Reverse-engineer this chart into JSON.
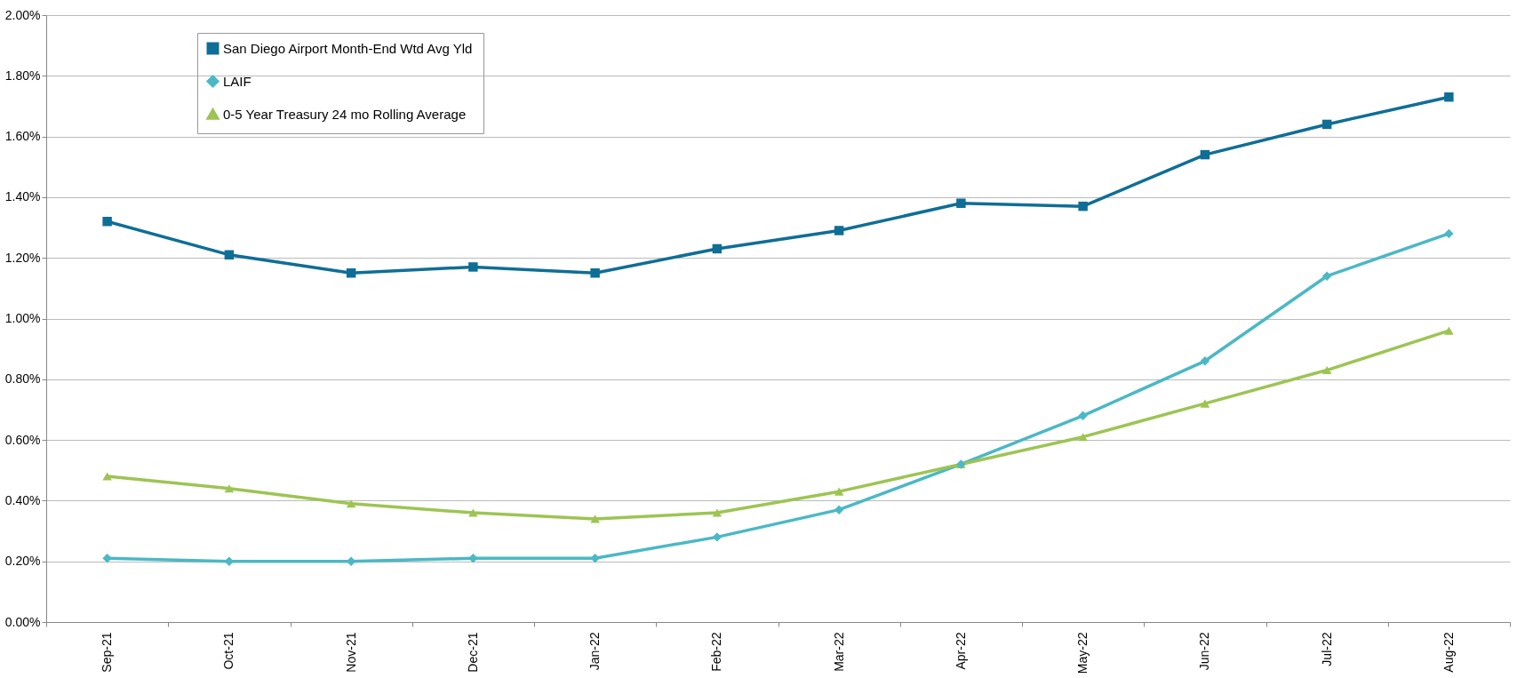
{
  "chart_data": {
    "type": "line",
    "categories": [
      "Sep-21",
      "Oct-21",
      "Nov-21",
      "Dec-21",
      "Jan-22",
      "Feb-22",
      "Mar-22",
      "Apr-22",
      "May-22",
      "Jun-22",
      "Jul-22",
      "Aug-22"
    ],
    "series": [
      {
        "name": "San Diego Airport Month-End Wtd Avg Yld",
        "color": "#0f6e96",
        "marker": "square",
        "values": [
          1.32,
          1.21,
          1.15,
          1.17,
          1.15,
          1.23,
          1.29,
          1.38,
          1.37,
          1.54,
          1.64,
          1.73
        ]
      },
      {
        "name": "LAIF",
        "color": "#4bb8c5",
        "marker": "diamond",
        "values": [
          0.21,
          0.2,
          0.2,
          0.21,
          0.21,
          0.28,
          0.37,
          0.52,
          0.68,
          0.86,
          1.14,
          1.28
        ]
      },
      {
        "name": "0-5 Year Treasury 24 mo Rolling Average",
        "color": "#9dc453",
        "marker": "triangle",
        "values": [
          0.48,
          0.44,
          0.39,
          0.36,
          0.34,
          0.36,
          0.43,
          0.52,
          0.61,
          0.72,
          0.83,
          0.96
        ]
      }
    ],
    "ylim": [
      0,
      2
    ],
    "yticks": [
      {
        "value": 0,
        "label": "0.00%"
      },
      {
        "value": 0.2,
        "label": "0.20%"
      },
      {
        "value": 0.4,
        "label": "0.40%"
      },
      {
        "value": 0.6,
        "label": "0.60%"
      },
      {
        "value": 0.8,
        "label": "0.80%"
      },
      {
        "value": 1.0,
        "label": "1.00%"
      },
      {
        "value": 1.2,
        "label": "1.20%"
      },
      {
        "value": 1.4,
        "label": "1.40%"
      },
      {
        "value": 1.6,
        "label": "1.60%"
      },
      {
        "value": 1.8,
        "label": "1.80%"
      },
      {
        "value": 2.0,
        "label": "2.00%"
      }
    ],
    "grid": "y",
    "legend": "top left",
    "line_style": "solid"
  }
}
